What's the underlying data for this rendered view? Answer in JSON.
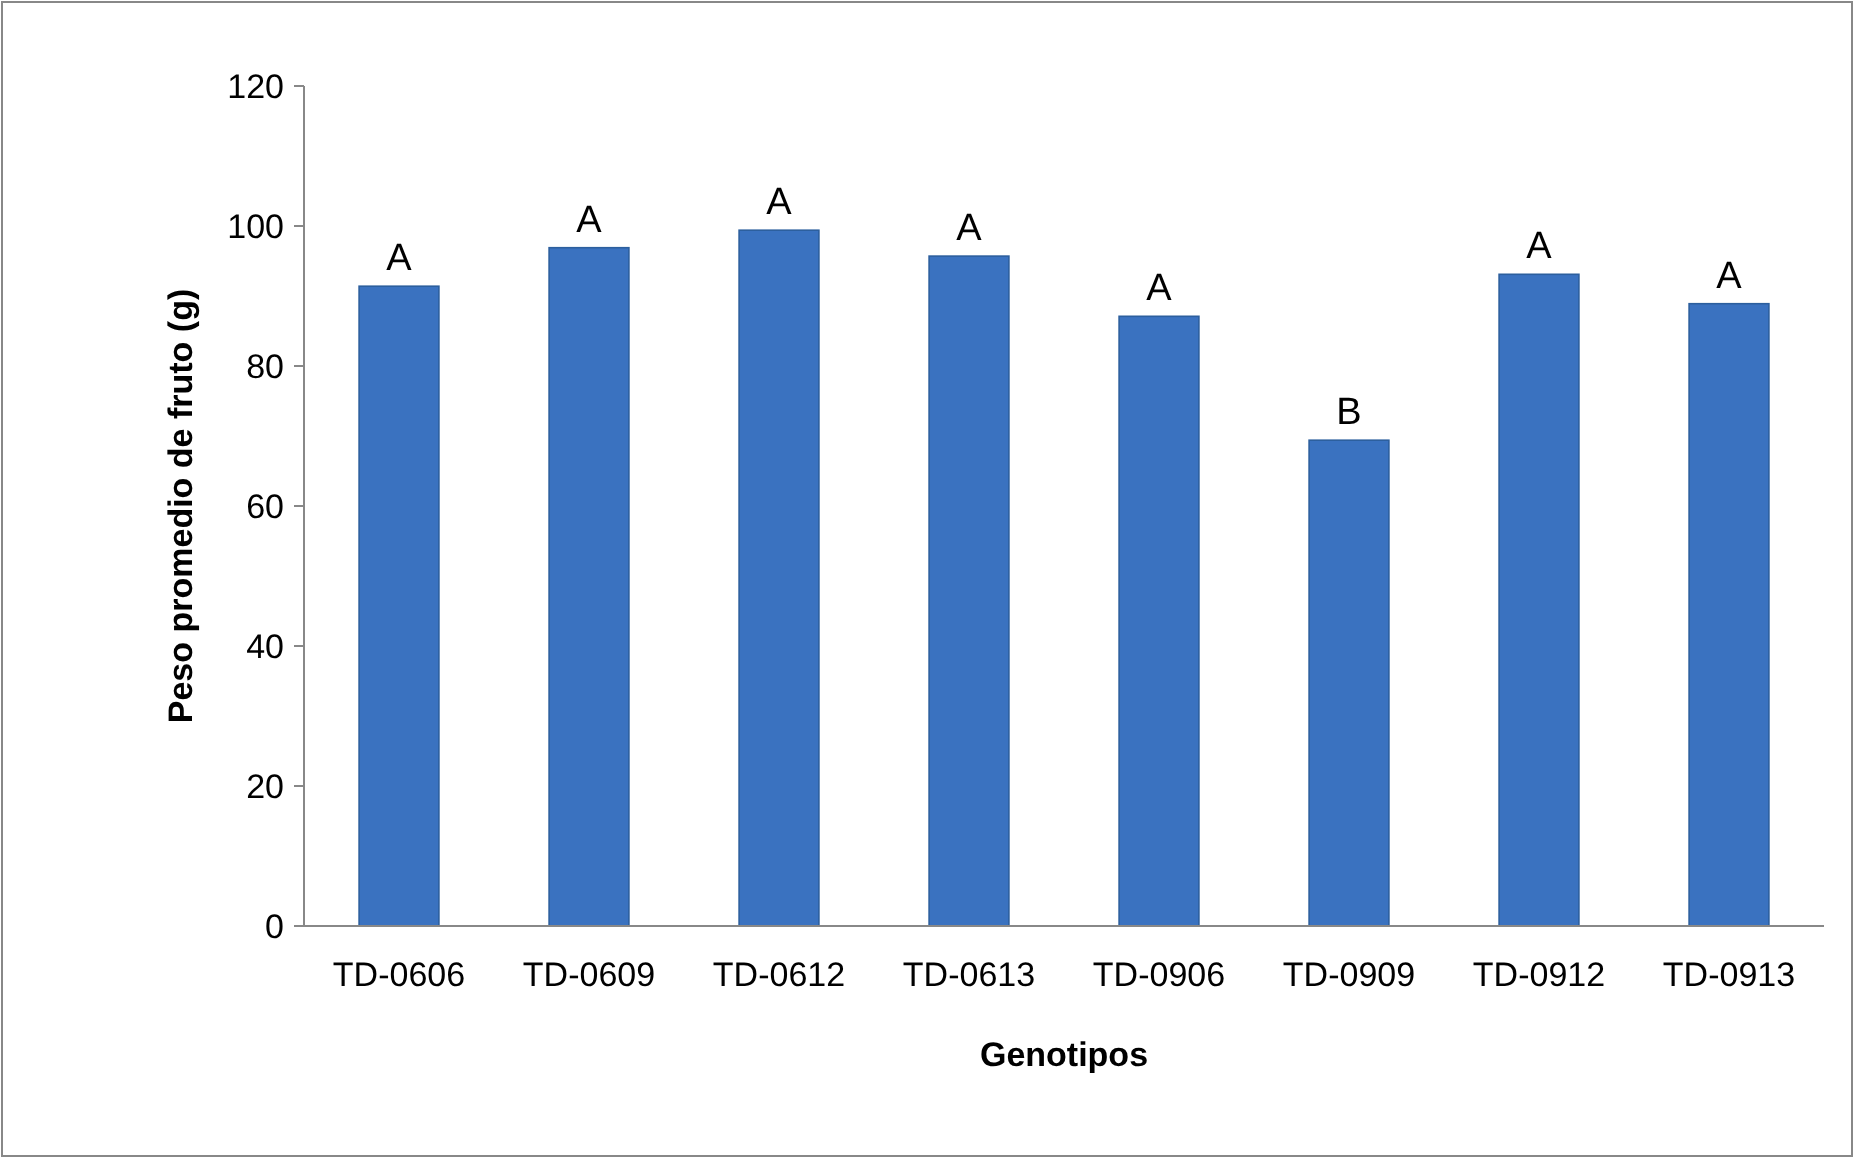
{
  "chart_data": {
    "type": "bar",
    "xlabel": "Genotipos",
    "ylabel": "Peso promedio de fruto (g)",
    "categories": [
      "TD-0606",
      "TD-0609",
      "TD-0612",
      "TD-0613",
      "TD-0906",
      "TD-0909",
      "TD-0912",
      "TD-0913"
    ],
    "values": [
      91.4,
      96.9,
      99.4,
      95.7,
      87.1,
      69.4,
      93.1,
      88.9
    ],
    "color": "#3a72c0",
    "ylim": [
      0,
      120
    ],
    "yticks": [
      0,
      20,
      40,
      60,
      80,
      100,
      120
    ],
    "grid": false,
    "annotations": [
      {
        "text": "A",
        "x": "TD-0606",
        "y": 91.4
      },
      {
        "text": "A",
        "x": "TD-0609",
        "y": 96.9
      },
      {
        "text": "A",
        "x": "TD-0612",
        "y": 99.4
      },
      {
        "text": "A",
        "x": "TD-0613",
        "y": 95.7
      },
      {
        "text": "A",
        "x": "TD-0906",
        "y": 87.1
      },
      {
        "text": "B",
        "x": "TD-0909",
        "y": 69.4
      },
      {
        "text": "A",
        "x": "TD-0912",
        "y": 93.1
      },
      {
        "text": "A",
        "x": "TD-0913",
        "y": 88.9
      }
    ]
  }
}
